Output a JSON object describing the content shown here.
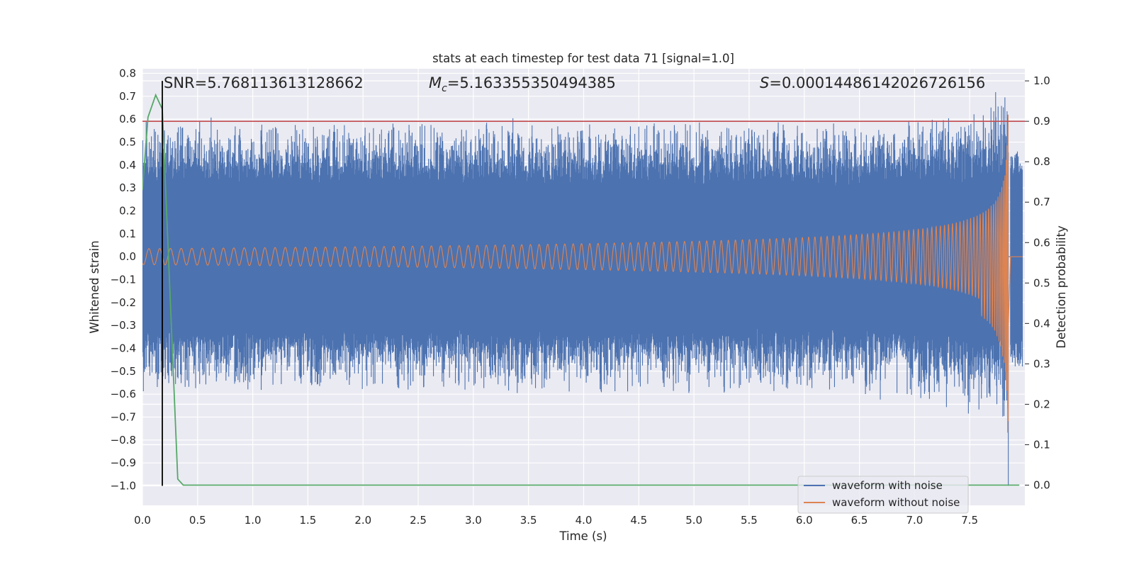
{
  "chart_data": {
    "type": "line",
    "title": "stats at each timestep for test data 71 [signal=1.0]",
    "xlabel": "Time (s)",
    "ylabel": "Whitened strain",
    "ylabel_right": "Detection probability",
    "xlim": [
      0.0,
      8.0
    ],
    "ylim": [
      -1.085,
      0.82
    ],
    "ylim_right": [
      -0.05,
      1.03
    ],
    "x_ticks": [
      "0.0",
      "0.5",
      "1.0",
      "1.5",
      "2.0",
      "2.5",
      "3.0",
      "3.5",
      "4.0",
      "4.5",
      "5.0",
      "5.5",
      "6.0",
      "6.5",
      "7.0",
      "7.5"
    ],
    "y_ticks": [
      "0.8",
      "0.7",
      "0.6",
      "0.5",
      "0.4",
      "0.3",
      "0.2",
      "0.1",
      "0.0",
      "−0.1",
      "−0.2",
      "−0.3",
      "−0.4",
      "−0.5",
      "−0.6",
      "−0.7",
      "−0.8",
      "−0.9",
      "−1.0"
    ],
    "y_tick_values": [
      0.8,
      0.7,
      0.6,
      0.5,
      0.4,
      0.3,
      0.2,
      0.1,
      0.0,
      -0.1,
      -0.2,
      -0.3,
      -0.4,
      -0.5,
      -0.6,
      -0.7,
      -0.8,
      -0.9,
      -1.0
    ],
    "y_right_ticks": [
      "1.0",
      "0.9",
      "0.8",
      "0.7",
      "0.6",
      "0.5",
      "0.4",
      "0.3",
      "0.2",
      "0.1",
      "0.0"
    ],
    "y_right_tick_values": [
      1.0,
      0.9,
      0.8,
      0.7,
      0.6,
      0.5,
      0.4,
      0.3,
      0.2,
      0.1,
      0.0
    ],
    "annotations": {
      "snr": "SNR=5.768113613128662",
      "mc_symbol": "M",
      "mc_sub": "c",
      "mc_value": "=5.163355350494385",
      "s_symbol": "S",
      "s_value": "=0.00014486142026726156"
    },
    "threshold_probability": 0.9,
    "marker_time": 0.18,
    "merger_time": 7.85,
    "series": [
      {
        "name": "waveform with noise",
        "color": "#4c72b0",
        "noise_amplitude": 0.5,
        "final_dip": -1.0
      },
      {
        "name": "waveform without noise",
        "color": "#dd8452",
        "start_amplitude": 0.035,
        "peak_amplitude": 0.46,
        "peak_min": -0.63
      },
      {
        "name": "detection probability",
        "color": "#55a868",
        "x": [
          0.0,
          0.05,
          0.12,
          0.18,
          0.32,
          0.37,
          7.95
        ],
        "y": [
          0.73,
          0.91,
          0.965,
          0.93,
          0.015,
          0.0,
          0.0
        ]
      }
    ],
    "legend": [
      "waveform with noise",
      "waveform without noise"
    ],
    "legend_position": "lower-right",
    "colors": {
      "threshold": "#c44e52",
      "marker": "#000000",
      "plot_bg": "#eaeaf2",
      "grid": "#ffffff"
    }
  }
}
